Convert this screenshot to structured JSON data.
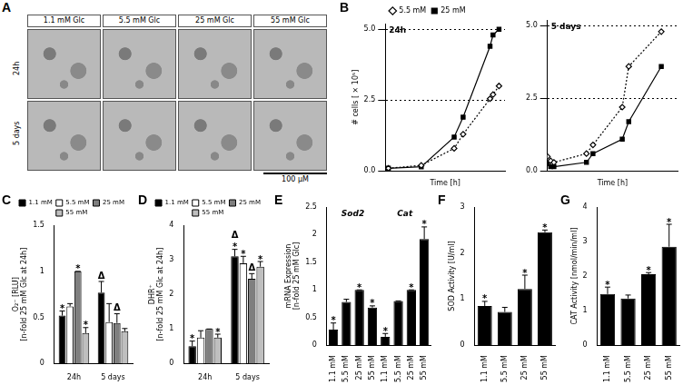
{
  "micrographs": {
    "panel": "A",
    "columns": [
      "1.1 mM Glc",
      "5.5 mM Glc",
      "25 mM Glc",
      "55 mM Glc"
    ],
    "rows": [
      "24h",
      "5 days"
    ],
    "scale_bar": "100 µM"
  },
  "chart_data": [
    {
      "panel": "B",
      "type": "line",
      "title": "24h",
      "x_label": "Time [h]",
      "y_label": "# cells [ × 10⁵]",
      "x": [
        2,
        24,
        46,
        52,
        70,
        72,
        76
      ],
      "series": [
        {
          "name": "5.5 mM",
          "color": "#000000",
          "marker": "open_diamond",
          "line_style": "dotted",
          "values": [
            0.1,
            0.2,
            0.8,
            1.3,
            2.55,
            2.7,
            3.0
          ]
        },
        {
          "name": "25 mM",
          "color": "#000000",
          "marker": "square",
          "line_style": "solid",
          "values": [
            0.1,
            0.15,
            1.2,
            1.9,
            4.4,
            4.8,
            5.0
          ]
        }
      ],
      "xlim": [
        0,
        80
      ],
      "xticks": [
        0,
        20,
        40,
        60,
        80
      ],
      "ylim": [
        0,
        5.2
      ],
      "yticks": [
        {
          "value": 0,
          "label": "0.0"
        },
        {
          "value": 2.5,
          "label": "2.5"
        },
        {
          "value": 5,
          "label": "5.0"
        }
      ],
      "grid": "y",
      "legend": "top",
      "tick_labels": "y"
    },
    {
      "type": "line",
      "title": "5 days",
      "x_label": "Time [h]",
      "x": [
        0,
        2,
        4,
        24,
        28,
        46,
        50,
        70
      ],
      "series": [
        {
          "name": "5.5 mM",
          "color": "#000000",
          "marker": "open_diamond",
          "line_style": "dotted",
          "values": [
            0.5,
            0.35,
            0.3,
            0.6,
            0.9,
            2.2,
            3.6,
            4.8
          ]
        },
        {
          "name": "25 mM",
          "color": "#000000",
          "marker": "square",
          "line_style": "solid",
          "values": [
            0.25,
            0.15,
            0.15,
            0.3,
            0.6,
            1.1,
            1.7,
            3.6
          ]
        }
      ],
      "xlim": [
        0,
        80
      ],
      "xticks": [
        0,
        20,
        40,
        60,
        80
      ],
      "ylim": [
        0,
        5.2
      ],
      "yticks": [
        {
          "value": 0,
          "label": "0.0"
        },
        {
          "value": 2.5,
          "label": "2.5"
        },
        {
          "value": 5,
          "label": "5.0"
        }
      ],
      "grid": "y",
      "tick_labels": "y"
    },
    {
      "panel": "C",
      "type": "bar",
      "y_label": [
        "O₂⁻ [RLU]",
        "[n-fold 25 mM Glc at 24h]"
      ],
      "categories": [
        "24h",
        "5 days"
      ],
      "series": [
        {
          "name": "1.1 mM",
          "color": "#000000",
          "values": [
            0.52,
            0.77
          ],
          "errors": [
            0.05,
            0.12
          ],
          "marks": [
            "*",
            "Δ"
          ]
        },
        {
          "name": "5.5 mM",
          "color": "#ffffff",
          "values": [
            0.62,
            0.45
          ],
          "errors": [
            0.03,
            0.2
          ],
          "marks": [
            null,
            null
          ]
        },
        {
          "name": "25 mM",
          "color": "#7f7f7f",
          "values": [
            1.0,
            0.44
          ],
          "errors": [
            0,
            0.1
          ],
          "marks": [
            "*",
            "Δ"
          ]
        },
        {
          "name": "55 mM",
          "color": "#bfbfbf",
          "values": [
            0.33,
            0.35
          ],
          "errors": [
            0.06,
            0.03
          ],
          "marks": [
            "*",
            null
          ]
        }
      ],
      "ylim": [
        0,
        1.5
      ],
      "yticks": [
        0,
        0.5,
        1,
        1.5
      ],
      "legend": "top"
    },
    {
      "panel": "D",
      "type": "bar",
      "y_label": [
        "DHR⁺",
        "[n-fold 25 mM Glc at 24h]"
      ],
      "categories": [
        "24h",
        "5 days"
      ],
      "series": [
        {
          "name": "1.1 mM",
          "color": "#000000",
          "values": [
            0.5,
            3.1
          ],
          "errors": [
            0.15,
            0.2
          ],
          "marks": [
            "*",
            [
              "Δ",
              "*"
            ]
          ]
        },
        {
          "name": "5.5 mM",
          "color": "#ffffff",
          "values": [
            0.75,
            2.9
          ],
          "errors": [
            0.2,
            0.2
          ],
          "marks": [
            null,
            "*"
          ]
        },
        {
          "name": "25 mM",
          "color": "#7f7f7f",
          "values": [
            1.0,
            2.45
          ],
          "errors": [
            0,
            0.15
          ],
          "marks": [
            null,
            "Δ"
          ]
        },
        {
          "name": "55 mM",
          "color": "#bfbfbf",
          "values": [
            0.75,
            2.8
          ],
          "errors": [
            0.1,
            0.15
          ],
          "marks": [
            "*",
            "*"
          ]
        }
      ],
      "ylim": [
        0,
        4
      ],
      "yticks": [
        0,
        1,
        2,
        3,
        4
      ],
      "legend": "top"
    },
    {
      "panel": "E",
      "type": "bar",
      "y_label": [
        "mRNA Expression",
        "[n-fold 25 mM Glc]"
      ],
      "groups": [
        "Sod2",
        "Cat"
      ],
      "categories": [
        "1.1 mM",
        "5.5 mM",
        "25 mM",
        "55 mM",
        "1.1 mM",
        "5.5 mM",
        "25 mM",
        "55 mM"
      ],
      "values": [
        0.28,
        0.78,
        1.0,
        0.68,
        0.15,
        0.8,
        1.0,
        1.92
      ],
      "errors": [
        0.12,
        0.05,
        0,
        0.03,
        0.06,
        0,
        0,
        0.22
      ],
      "marks": [
        "*",
        null,
        "*",
        "*",
        "*",
        null,
        "*",
        "*"
      ],
      "color": "#000000",
      "ylim": [
        0,
        2.5
      ],
      "yticks": [
        0,
        0.5,
        1,
        1.5,
        2,
        2.5
      ]
    },
    {
      "panel": "F",
      "type": "bar",
      "y_label": "SOD Activity [U/ml]",
      "categories": [
        "1.1 mM",
        "5.5 mM",
        "25 mM",
        "55 mM"
      ],
      "values": [
        0.85,
        0.72,
        1.22,
        2.45
      ],
      "errors": [
        0.1,
        0.1,
        0.3,
        0.05
      ],
      "marks": [
        "*",
        null,
        "*",
        "*"
      ],
      "color": "#000000",
      "ylim": [
        0,
        3
      ],
      "yticks": [
        0,
        1,
        2,
        3
      ]
    },
    {
      "panel": "G",
      "type": "bar",
      "y_label": "CAT Activity [nmol/min/ml]",
      "categories": [
        "1.1 mM",
        "5.5 mM",
        "25 mM",
        "55 mM"
      ],
      "values": [
        1.48,
        1.35,
        2.05,
        2.85
      ],
      "errors": [
        0.2,
        0.1,
        0.05,
        0.65
      ],
      "marks": [
        "*",
        null,
        "*",
        "*"
      ],
      "color": "#000000",
      "ylim": [
        0,
        4
      ],
      "yticks": [
        0,
        1,
        2,
        3,
        4
      ]
    }
  ]
}
